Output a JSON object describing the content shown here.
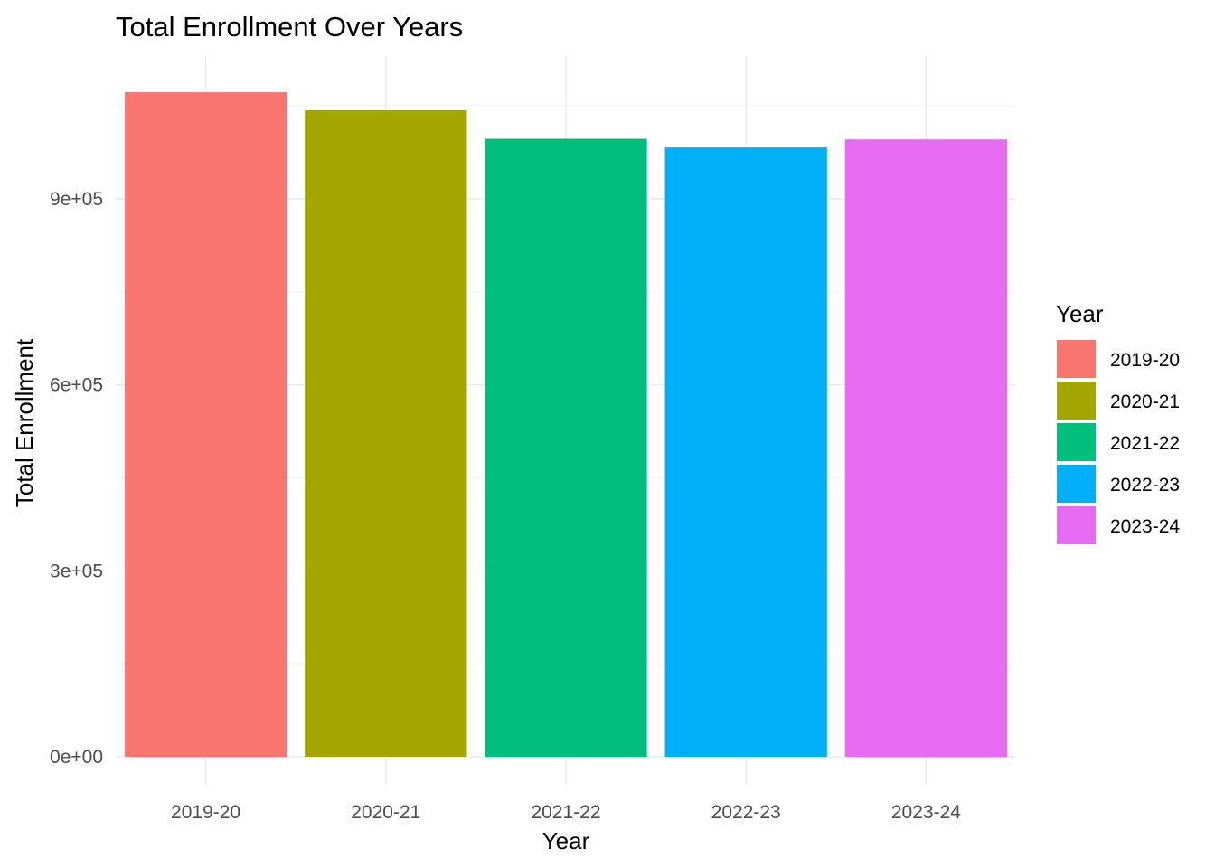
{
  "chart_data": {
    "type": "bar",
    "title": "Total Enrollment Over Years",
    "xlabel": "Year",
    "ylabel": "Total Enrollment",
    "categories": [
      "2019-20",
      "2020-21",
      "2021-22",
      "2022-23",
      "2023-24"
    ],
    "values": [
      1072000,
      1043000,
      997000,
      983000,
      996000
    ],
    "colors": [
      "#F8766D",
      "#A3A500",
      "#00BF7D",
      "#00B0F6",
      "#E76BF3"
    ],
    "ylim": [
      0,
      1100000
    ],
    "yticks": [
      0,
      300000,
      600000,
      900000
    ],
    "ytick_labels": [
      "0e+00",
      "3e+05",
      "6e+05",
      "9e+05"
    ],
    "grid": true,
    "legend": {
      "title": "Year",
      "position": "right",
      "entries": [
        "2019-20",
        "2020-21",
        "2021-22",
        "2022-23",
        "2023-24"
      ]
    }
  }
}
